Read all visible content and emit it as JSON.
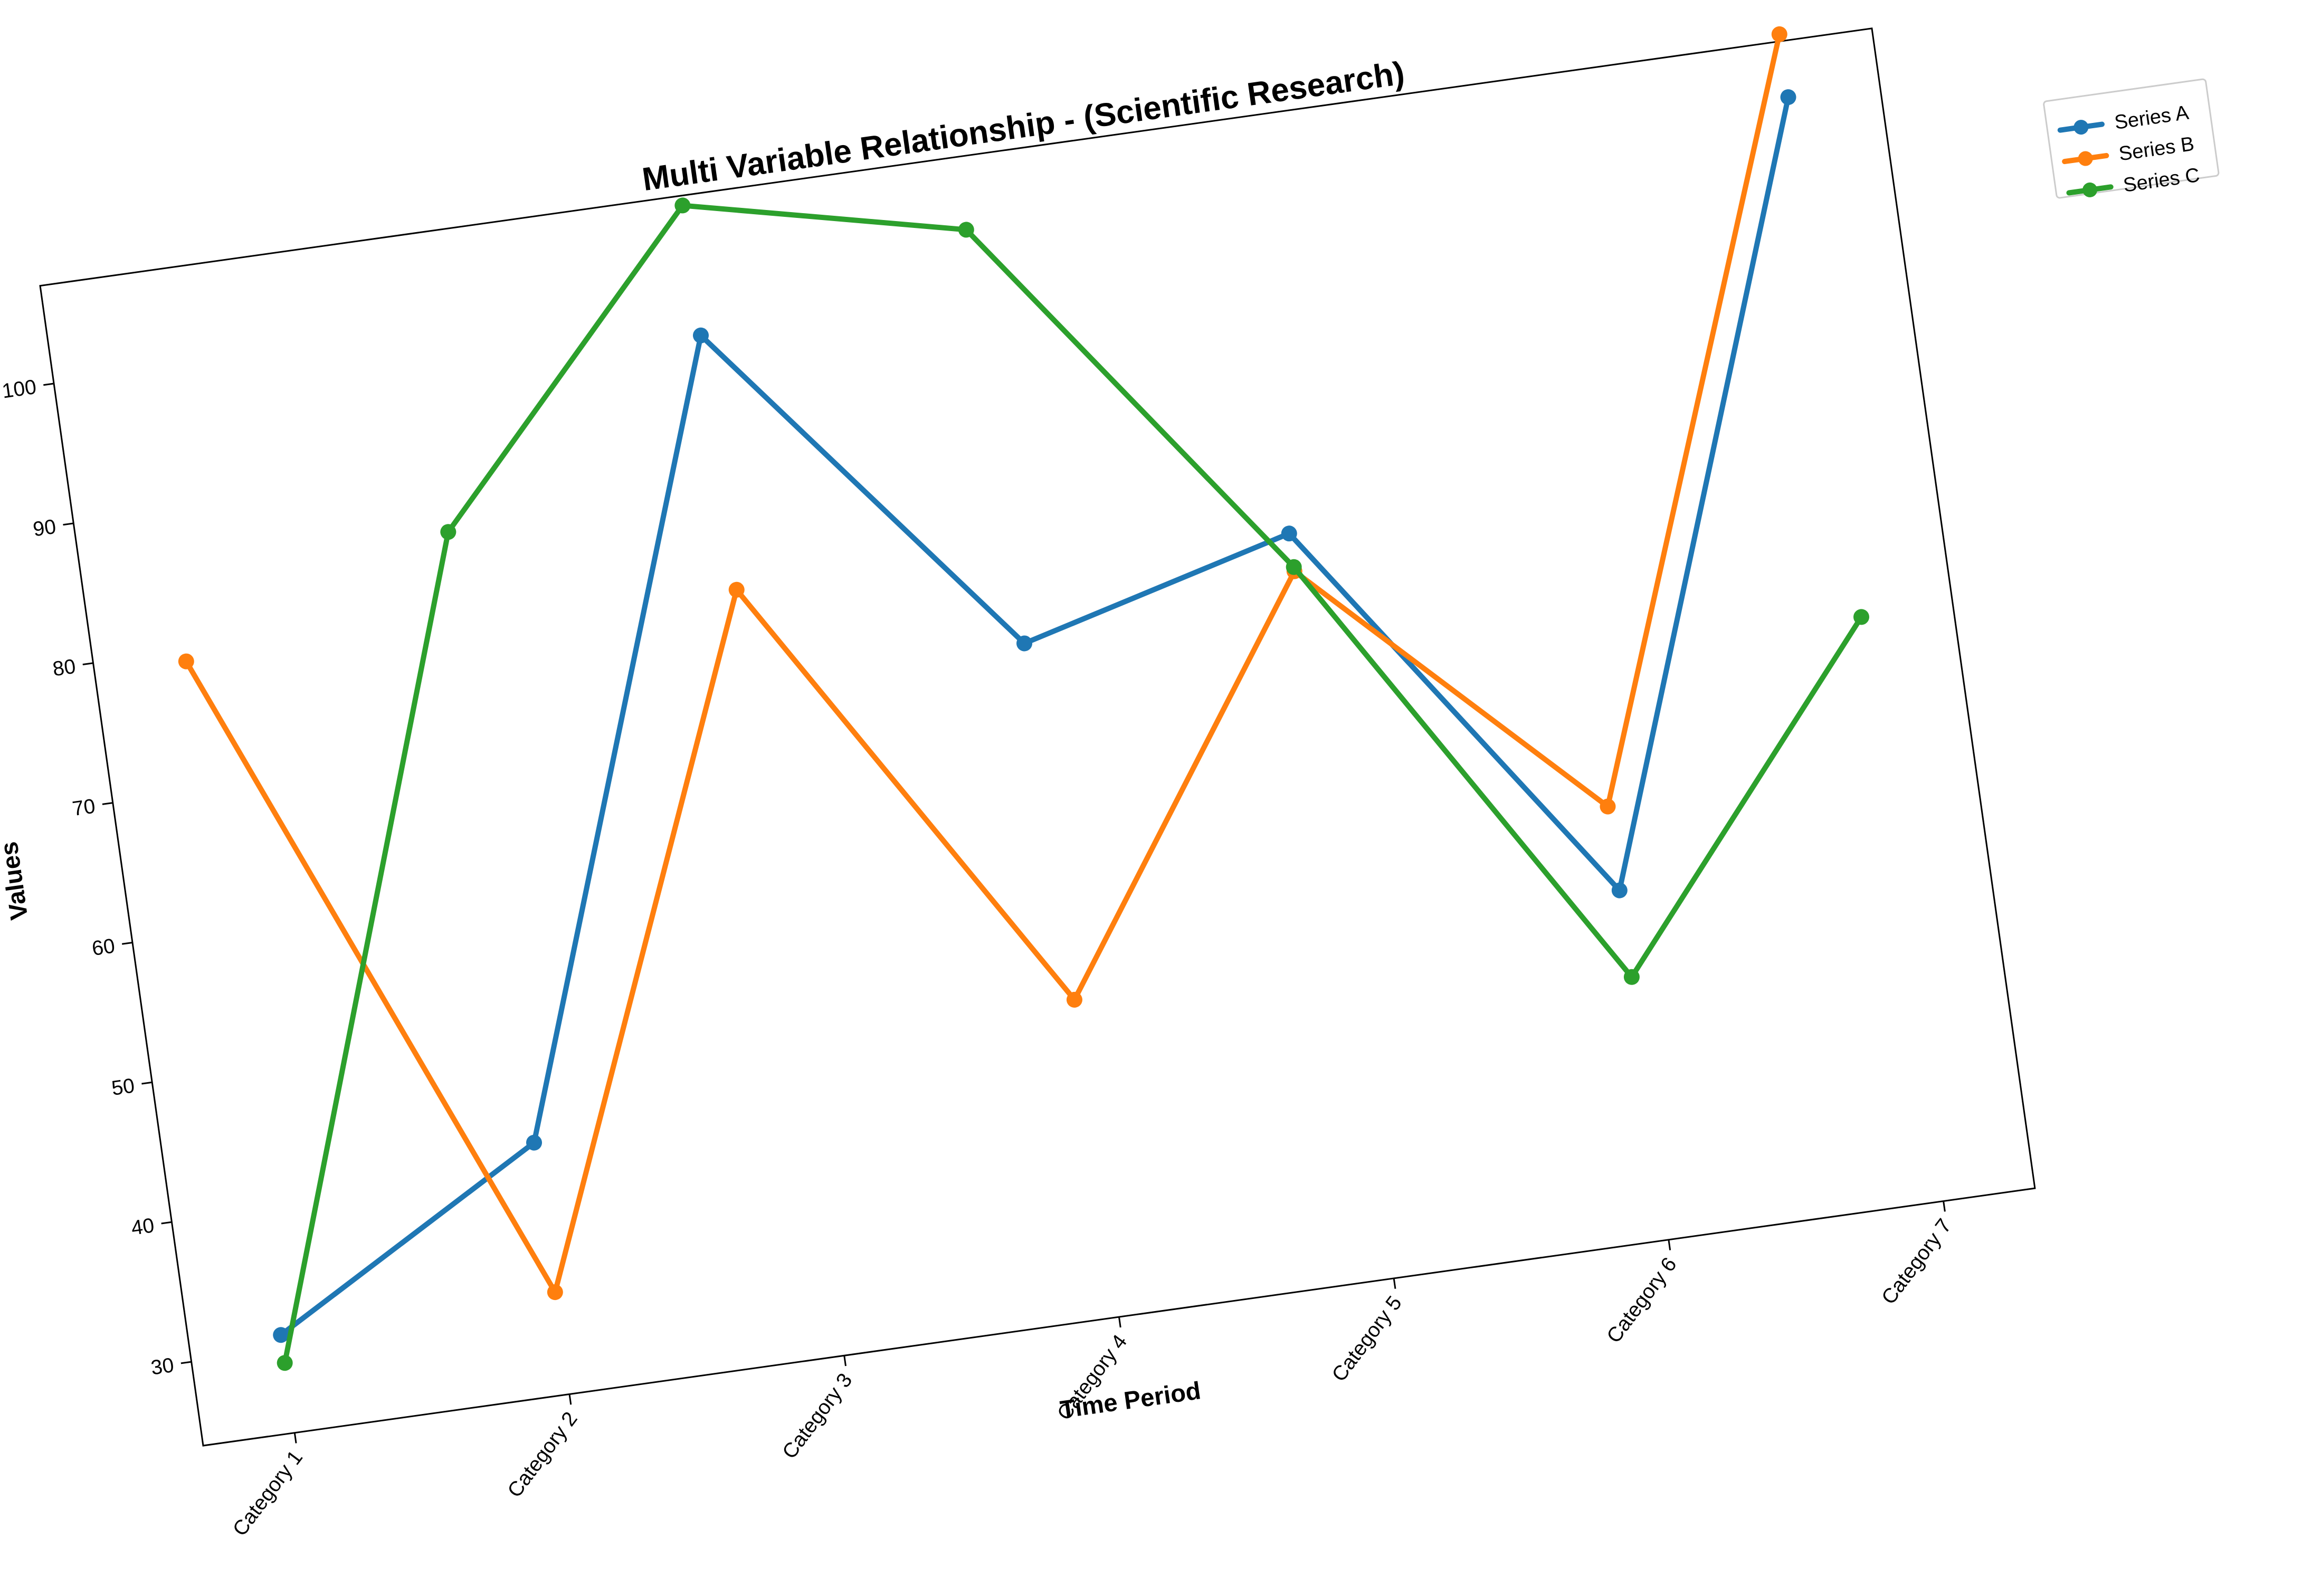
{
  "chart_data": {
    "type": "line",
    "title": "Multi Variable Relationship - (Scientific Research)",
    "xlabel": "Time Period",
    "ylabel": "Values",
    "categories": [
      "Category 1",
      "Category 2",
      "Category 3",
      "Category 4",
      "Category 5",
      "Category 6",
      "Category 7"
    ],
    "yticks": [
      30,
      40,
      50,
      60,
      70,
      80,
      90,
      100
    ],
    "ylim": [
      24,
      107
    ],
    "grid": false,
    "legend_position": "outside top-right",
    "rotation_degrees": -8,
    "series": [
      {
        "name": "Series A",
        "color": "#1f77b4",
        "values": [
          31.0,
          42.0,
          97.0,
          72.2,
          77.3,
          49.0,
          103.0
        ]
      },
      {
        "name": "Series B",
        "color": "#ff7f0e",
        "values": [
          79.2,
          31.3,
          78.8,
          46.7,
          74.6,
          55.0,
          107.5
        ]
      },
      {
        "name": "Series C",
        "color": "#2ca02c",
        "values": [
          29.0,
          85.7,
          106.3,
          101.8,
          74.9,
          42.8,
          65.8
        ]
      }
    ]
  }
}
